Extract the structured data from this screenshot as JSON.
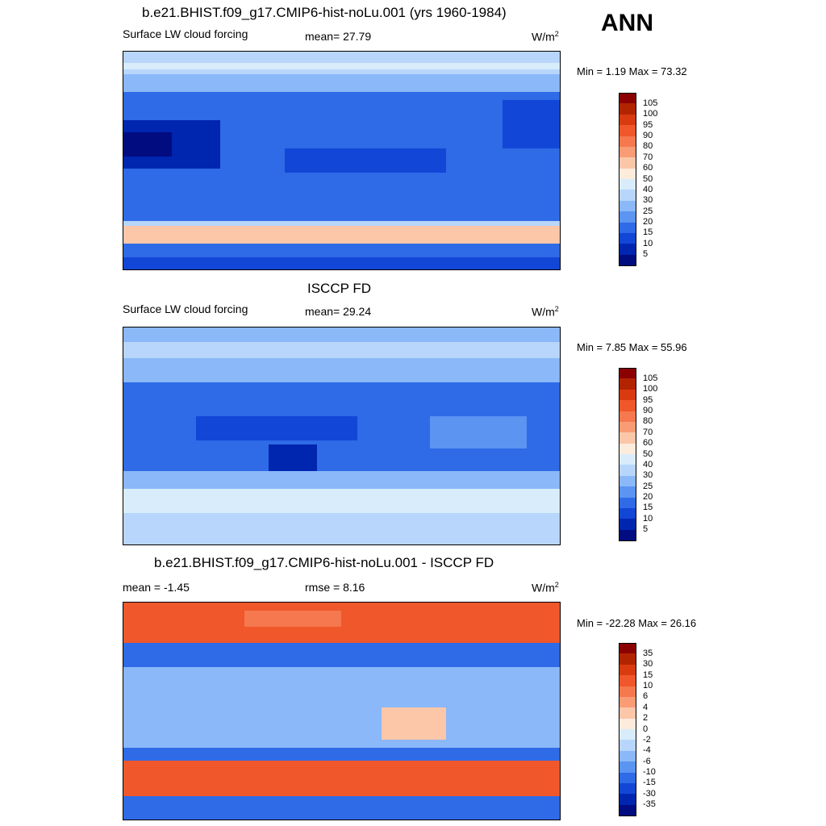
{
  "season": "ANN",
  "panels": [
    {
      "title": "b.e21.BHIST.f09_g17.CMIP6-hist-noLu.001 (yrs 1960-1984)",
      "left_label": "Surface LW cloud forcing",
      "center_label": "mean=  27.79",
      "units": "W/m",
      "units_sup": "2",
      "minmax": "Min =   1.19 Max =  73.32"
    },
    {
      "title": "ISCCP FD",
      "left_label": "Surface LW cloud forcing",
      "center_label": "mean=  29.24",
      "units": "W/m",
      "units_sup": "2",
      "minmax": "Min =   7.85 Max =  55.96"
    },
    {
      "title": "b.e21.BHIST.f09_g17.CMIP6-hist-noLu.001 - ISCCP FD",
      "left_label": "mean =  -1.45",
      "center_label": "rmse =   8.16",
      "units": "W/m",
      "units_sup": "2",
      "minmax": "Min = -22.28 Max =  26.16"
    }
  ],
  "colorbars": {
    "abs": {
      "levels": [
        "105",
        "100",
        "95",
        "90",
        "80",
        "70",
        "60",
        "50",
        "40",
        "30",
        "25",
        "20",
        "15",
        "10",
        "5"
      ],
      "colors": [
        "#8b0000",
        "#b22400",
        "#d93a0f",
        "#f0572a",
        "#f5784e",
        "#f99c75",
        "#fcc6a8",
        "#fdebdc",
        "#d8ecfc",
        "#b8d6fb",
        "#8ab8f8",
        "#5b94f1",
        "#2f6ae7",
        "#1246d6",
        "#0026b0",
        "#000c80"
      ]
    },
    "diff": {
      "levels": [
        "35",
        "30",
        "15",
        "10",
        "6",
        "4",
        "2",
        "0",
        "-2",
        "-4",
        "-6",
        "-10",
        "-15",
        "-30",
        "-35"
      ],
      "colors": [
        "#8b0000",
        "#b22400",
        "#d93a0f",
        "#f0572a",
        "#f5784e",
        "#f99c75",
        "#fcc6a8",
        "#fdebdc",
        "#d8ecfc",
        "#b8d6fb",
        "#8ab8f8",
        "#5b94f1",
        "#2f6ae7",
        "#1246d6",
        "#0026b0",
        "#000c80"
      ]
    }
  },
  "chart_data": [
    {
      "type": "heatmap",
      "title": "b.e21.BHIST.f09_g17.CMIP6-hist-noLu.001 (yrs 1960-1984)",
      "variable": "Surface LW cloud forcing",
      "mean": 27.79,
      "min": 1.19,
      "max": 73.32,
      "units": "W/m2",
      "contour_levels": [
        5,
        10,
        15,
        20,
        25,
        30,
        40,
        50,
        60,
        70,
        80,
        90,
        95,
        100,
        105
      ]
    },
    {
      "type": "heatmap",
      "title": "ISCCP FD",
      "variable": "Surface LW cloud forcing",
      "mean": 29.24,
      "min": 7.85,
      "max": 55.96,
      "units": "W/m2",
      "contour_levels": [
        5,
        10,
        15,
        20,
        25,
        30,
        40,
        50,
        60,
        70,
        80,
        90,
        95,
        100,
        105
      ]
    },
    {
      "type": "heatmap",
      "title": "b.e21.BHIST.f09_g17.CMIP6-hist-noLu.001 - ISCCP FD",
      "mean": -1.45,
      "rmse": 8.16,
      "min": -22.28,
      "max": 26.16,
      "units": "W/m2",
      "contour_levels": [
        -35,
        -30,
        -15,
        -10,
        -6,
        -4,
        -2,
        0,
        2,
        4,
        6,
        10,
        15,
        30,
        35
      ]
    }
  ]
}
